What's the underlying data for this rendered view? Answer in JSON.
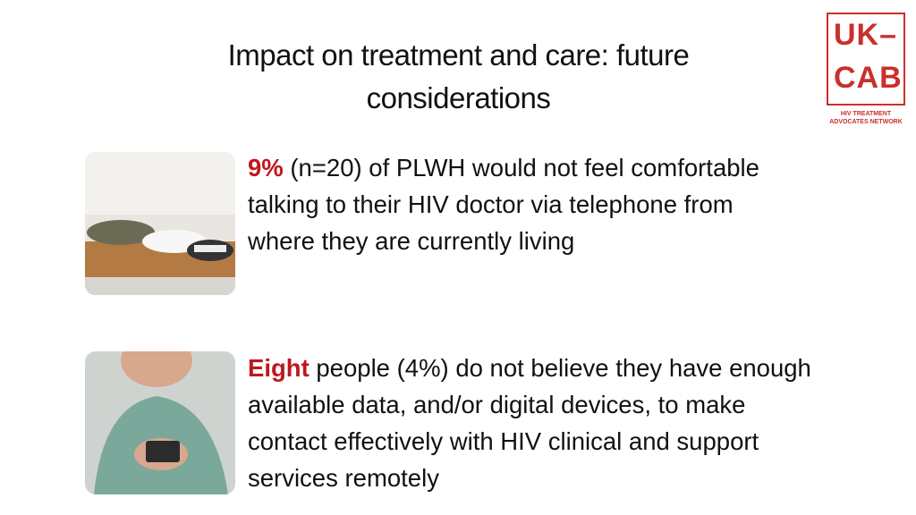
{
  "header": {
    "title": "Impact on treatment and care: future considerations"
  },
  "logo": {
    "line1": "UK–",
    "line2": "CAB",
    "tagline1": "HIV TREATMENT",
    "tagline2": "ADVOCATES NETWORK"
  },
  "items": [
    {
      "highlight": "9%",
      "text": "(n=20) of PLWH would not feel comfortable talking to their HIV doctor via telephone from where they are currently living"
    },
    {
      "highlight": "Eight",
      "text": "people (4%) do not believe they have enough available data, and/or digital devices, to make contact effectively with HIV clinical and support services remotely"
    }
  ]
}
